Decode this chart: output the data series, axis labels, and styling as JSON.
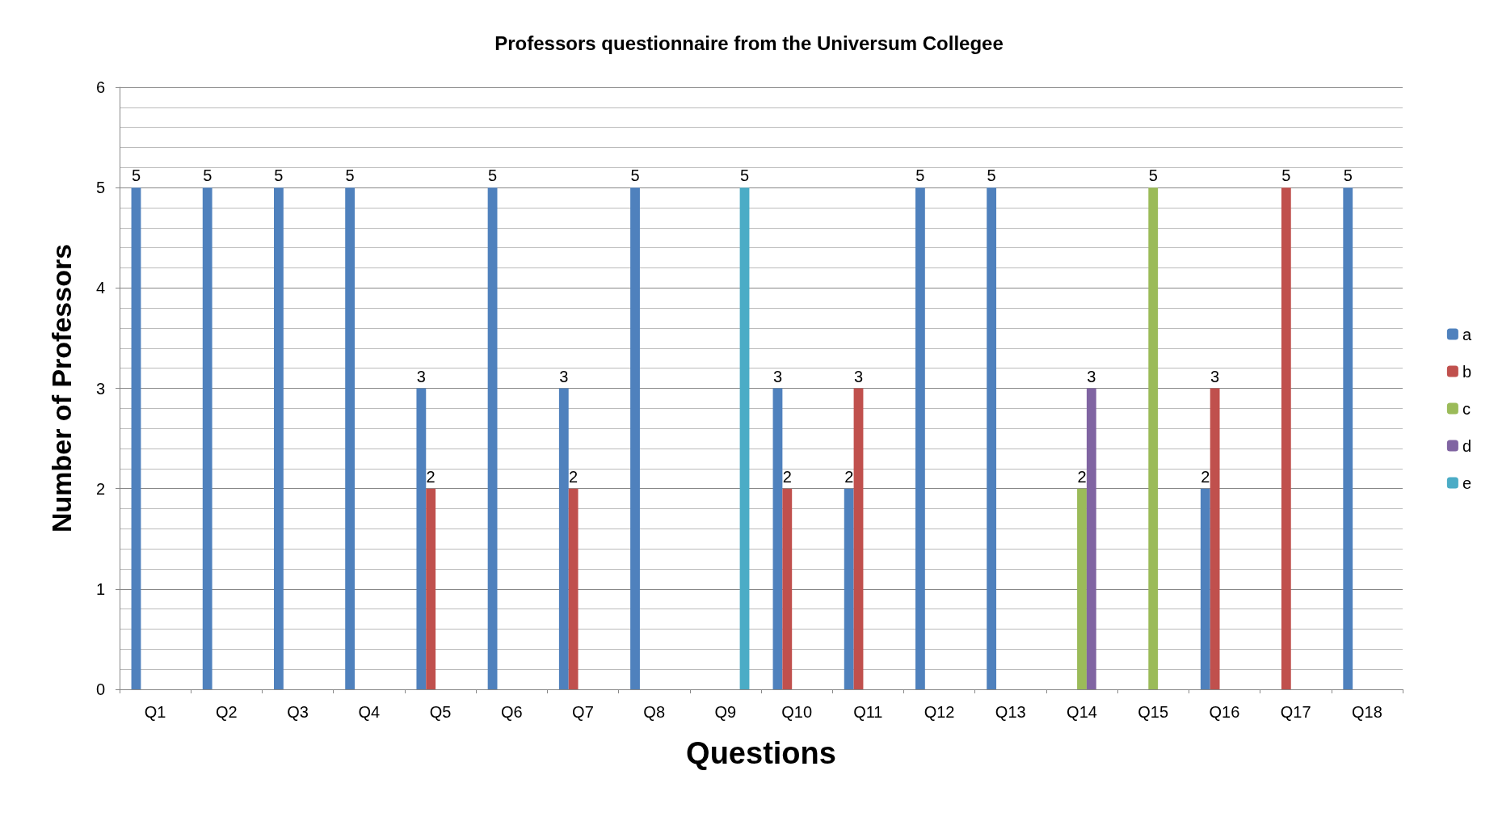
{
  "chart_data": {
    "type": "bar",
    "title": "Professors questionnaire from the Universum Collegee",
    "xlabel": "Questions",
    "ylabel": "Number of Professors",
    "categories": [
      "Q1",
      "Q2",
      "Q3",
      "Q4",
      "Q5",
      "Q6",
      "Q7",
      "Q8",
      "Q9",
      "Q10",
      "Q11",
      "Q12",
      "Q13",
      "Q14",
      "Q15",
      "Q16",
      "Q17",
      "Q18"
    ],
    "series": [
      {
        "name": "a",
        "color": "#4f81bd",
        "values": [
          5,
          5,
          5,
          5,
          3,
          5,
          3,
          5,
          null,
          3,
          2,
          5,
          5,
          null,
          null,
          2,
          null,
          5
        ]
      },
      {
        "name": "b",
        "color": "#c0504d",
        "values": [
          null,
          null,
          null,
          null,
          2,
          null,
          2,
          null,
          null,
          2,
          3,
          null,
          null,
          null,
          null,
          3,
          5,
          null
        ]
      },
      {
        "name": "c",
        "color": "#9bbb59",
        "values": [
          null,
          null,
          null,
          null,
          null,
          null,
          null,
          null,
          null,
          null,
          null,
          null,
          null,
          2,
          5,
          null,
          null,
          null
        ]
      },
      {
        "name": "d",
        "color": "#8064a2",
        "values": [
          null,
          null,
          null,
          null,
          null,
          null,
          null,
          null,
          null,
          null,
          null,
          null,
          null,
          3,
          null,
          null,
          null,
          null
        ]
      },
      {
        "name": "e",
        "color": "#4bacc6",
        "values": [
          null,
          null,
          null,
          null,
          null,
          null,
          null,
          null,
          5,
          null,
          null,
          null,
          null,
          null,
          null,
          null,
          null,
          null
        ]
      }
    ],
    "ylim": [
      0,
      6
    ],
    "yticks": [
      0,
      1,
      2,
      3,
      4,
      5,
      6
    ],
    "grid": "y",
    "legend": "right",
    "data_labels": true
  }
}
